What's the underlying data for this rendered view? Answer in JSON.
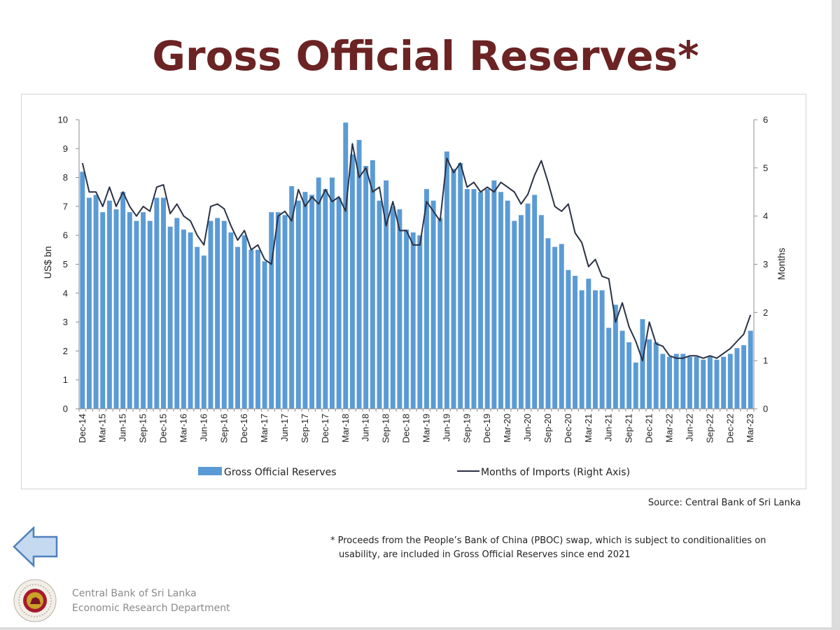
{
  "page": {
    "title": "Gross Official Reserves*",
    "source": "Source: Central Bank of Sri Lanka",
    "footnote": {
      "line1": "* Proceeds from the People’s Bank of China (PBOC) swap, which is subject to conditionalities on",
      "line2": "usability, are included in Gross Official Reserves since end 2021"
    },
    "org": {
      "line1": "Central Bank of Sri Lanka",
      "line2": "Economic Research Department"
    },
    "icons": {
      "back": "back-arrow-icon",
      "logo": "central-bank-logo-icon"
    },
    "colors": {
      "title": "#6b2323",
      "bars": "#5b9bd5",
      "line": "#2b3245",
      "arrow_fill": "#c5d9f1",
      "arrow_stroke": "#4f81bd"
    }
  },
  "chart_data": {
    "type": "bar",
    "categories": [
      "Dec-14",
      "Jan-15",
      "Feb-15",
      "Mar-15",
      "Apr-15",
      "May-15",
      "Jun-15",
      "Jul-15",
      "Aug-15",
      "Sep-15",
      "Oct-15",
      "Nov-15",
      "Dec-15",
      "Jan-16",
      "Feb-16",
      "Mar-16",
      "Apr-16",
      "May-16",
      "Jun-16",
      "Jul-16",
      "Aug-16",
      "Sep-16",
      "Oct-16",
      "Nov-16",
      "Dec-16",
      "Jan-17",
      "Feb-17",
      "Mar-17",
      "Apr-17",
      "May-17",
      "Jun-17",
      "Jul-17",
      "Aug-17",
      "Sep-17",
      "Oct-17",
      "Nov-17",
      "Dec-17",
      "Jan-18",
      "Feb-18",
      "Mar-18",
      "Apr-18",
      "May-18",
      "Jun-18",
      "Jul-18",
      "Aug-18",
      "Sep-18",
      "Oct-18",
      "Nov-18",
      "Dec-18",
      "Jan-19",
      "Feb-19",
      "Mar-19",
      "Apr-19",
      "May-19",
      "Jun-19",
      "Jul-19",
      "Aug-19",
      "Sep-19",
      "Oct-19",
      "Nov-19",
      "Dec-19",
      "Jan-20",
      "Feb-20",
      "Mar-20",
      "Apr-20",
      "May-20",
      "Jun-20",
      "Jul-20",
      "Aug-20",
      "Sep-20",
      "Oct-20",
      "Nov-20",
      "Dec-20",
      "Jan-21",
      "Feb-21",
      "Mar-21",
      "Apr-21",
      "May-21",
      "Jun-21",
      "Jul-21",
      "Aug-21",
      "Sep-21",
      "Oct-21",
      "Nov-21",
      "Dec-21",
      "Jan-22",
      "Feb-22",
      "Mar-22",
      "Apr-22",
      "May-22",
      "Jun-22",
      "Jul-22",
      "Aug-22",
      "Sep-22",
      "Oct-22",
      "Nov-22",
      "Dec-22",
      "Jan-23",
      "Feb-23",
      "Mar-23"
    ],
    "tick_labels": [
      "Dec-14",
      "Mar-15",
      "Jun-15",
      "Sep-15",
      "Dec-15",
      "Mar-16",
      "Jun-16",
      "Sep-16",
      "Dec-16",
      "Mar-17",
      "Jun-17",
      "Sep-17",
      "Dec-17",
      "Mar-18",
      "Jun-18",
      "Sep-18",
      "Dec-18",
      "Mar-19",
      "Jun-19",
      "Sep-19",
      "Dec-19",
      "Mar-20",
      "Jun-20",
      "Sep-20",
      "Dec-20",
      "Mar-21",
      "Jun-21",
      "Sep-21",
      "Dec-21",
      "Mar-22",
      "Jun-22",
      "Sep-22",
      "Dec-22",
      "Mar-23"
    ],
    "series": [
      {
        "name": "Gross Official Reserves",
        "type": "bar",
        "axis": "left",
        "values": [
          8.2,
          7.3,
          7.4,
          6.8,
          7.2,
          6.9,
          7.5,
          6.8,
          6.5,
          6.8,
          6.5,
          7.3,
          7.3,
          6.3,
          6.6,
          6.2,
          6.1,
          5.6,
          5.3,
          6.5,
          6.6,
          6.5,
          6.1,
          5.6,
          6.0,
          5.5,
          5.5,
          5.1,
          6.8,
          6.8,
          6.7,
          7.7,
          7.2,
          7.5,
          7.4,
          8.0,
          7.6,
          8.0,
          7.3,
          9.9,
          8.8,
          9.3,
          8.4,
          8.6,
          7.2,
          7.9,
          7.0,
          6.9,
          6.2,
          6.1,
          6.0,
          7.6,
          7.2,
          6.6,
          8.9,
          8.3,
          8.5,
          7.6,
          7.6,
          7.5,
          7.6,
          7.9,
          7.5,
          7.2,
          6.5,
          6.7,
          7.1,
          7.4,
          6.7,
          5.9,
          5.6,
          5.7,
          4.8,
          4.6,
          4.1,
          4.5,
          4.1,
          4.1,
          2.8,
          3.6,
          2.7,
          2.3,
          1.6,
          3.1,
          2.4,
          2.3,
          1.9,
          1.8,
          1.9,
          1.9,
          1.8,
          1.8,
          1.7,
          1.8,
          1.7,
          1.8,
          1.9,
          2.1,
          2.2,
          2.7
        ]
      },
      {
        "name": "Months of Imports (Right Axis)",
        "type": "line",
        "axis": "right",
        "values": [
          5.1,
          4.5,
          4.5,
          4.2,
          4.6,
          4.2,
          4.5,
          4.2,
          4.0,
          4.2,
          4.1,
          4.6,
          4.65,
          4.05,
          4.25,
          4.0,
          3.9,
          3.6,
          3.4,
          4.2,
          4.25,
          4.15,
          3.8,
          3.5,
          3.7,
          3.3,
          3.4,
          3.1,
          3.0,
          4.0,
          4.1,
          3.9,
          4.55,
          4.2,
          4.4,
          4.25,
          4.55,
          4.3,
          4.4,
          4.1,
          5.5,
          4.8,
          5.0,
          4.5,
          4.6,
          3.8,
          4.3,
          3.7,
          3.7,
          3.4,
          3.4,
          4.3,
          4.1,
          3.9,
          5.2,
          4.9,
          5.1,
          4.6,
          4.7,
          4.5,
          4.6,
          4.5,
          4.7,
          4.6,
          4.5,
          4.25,
          4.45,
          4.85,
          5.15,
          4.7,
          4.2,
          4.1,
          4.25,
          3.65,
          3.45,
          2.95,
          3.1,
          2.75,
          2.7,
          1.8,
          2.2,
          1.7,
          1.4,
          1.0,
          1.8,
          1.35,
          1.3,
          1.1,
          1.05,
          1.05,
          1.1,
          1.1,
          1.05,
          1.1,
          1.05,
          1.15,
          1.25,
          1.4,
          1.55,
          1.95
        ]
      }
    ],
    "ylabel": "US$ bn",
    "y2label": "Months",
    "ylim": [
      0,
      10
    ],
    "y2lim": [
      0,
      6
    ],
    "yticks": [
      0,
      1,
      2,
      3,
      4,
      5,
      6,
      7,
      8,
      9,
      10
    ],
    "y2ticks": [
      0,
      1,
      2,
      3,
      4,
      5,
      6
    ],
    "grid": false,
    "legend": "bottom"
  }
}
